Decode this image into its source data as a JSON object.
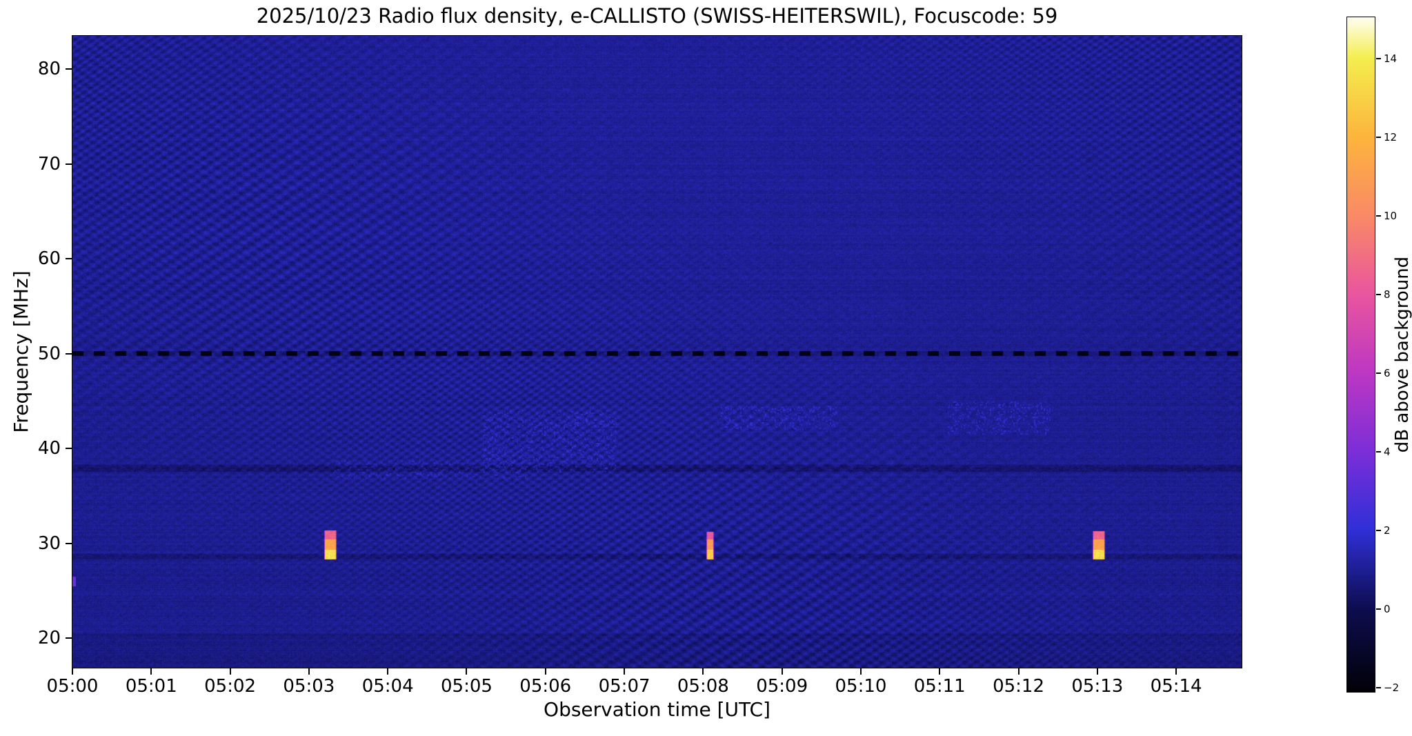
{
  "chart_data": {
    "type": "heatmap",
    "title": "2025/10/23  Radio flux density, e-CALLISTO (SWISS-HEITERSWIL), Focuscode: 59",
    "xlabel": "Observation time [UTC]",
    "ylabel": "Frequency [MHz]",
    "x_ticks": [
      "05:00",
      "05:01",
      "05:02",
      "05:03",
      "05:04",
      "05:05",
      "05:06",
      "05:07",
      "05:08",
      "05:09",
      "05:10",
      "05:11",
      "05:12",
      "05:13",
      "05:14"
    ],
    "x_range_minutes": [
      0,
      14.83
    ],
    "y_ticks": [
      20,
      30,
      40,
      50,
      60,
      70,
      80
    ],
    "freq_range_mhz": [
      16.9,
      83.5
    ],
    "background_db": 0.9,
    "grid": false,
    "colorbar": {
      "label": "dB above background",
      "vmin": -2.1,
      "vmax": 15.05,
      "tick_values": [
        -2,
        0,
        2,
        4,
        6,
        8,
        10,
        12,
        14
      ],
      "tick_labels": [
        "−2",
        "0",
        "2",
        "4",
        "6",
        "8",
        "10",
        "12",
        "14"
      ]
    },
    "colormap_stops": [
      {
        "t": 0.0,
        "color": "#020108"
      },
      {
        "t": 0.122,
        "color": "#0d0d4f"
      },
      {
        "t": 0.239,
        "color": "#2f2fd8"
      },
      {
        "t": 0.356,
        "color": "#7c2ed8"
      },
      {
        "t": 0.472,
        "color": "#bd37c3"
      },
      {
        "t": 0.589,
        "color": "#e9559e"
      },
      {
        "t": 0.706,
        "color": "#f98a66"
      },
      {
        "t": 0.822,
        "color": "#fdb43c"
      },
      {
        "t": 0.939,
        "color": "#f3ee4e"
      },
      {
        "t": 1.0,
        "color": "#fffef2"
      }
    ],
    "interference_lines": [
      {
        "freq_mhz": 50.0,
        "style": "dashed-dark",
        "db": -1.7,
        "half_width": 0.25
      },
      {
        "freq_mhz": 37.9,
        "style": "patchy-dark",
        "db_offset": -0.7,
        "half_width": 0.35
      },
      {
        "freq_mhz": 28.6,
        "style": "patchy-dark",
        "db_offset": -0.6,
        "half_width": 0.3
      }
    ],
    "bursts": [
      {
        "label": "calibration burst ~05:03:15, 28-31.5 MHz",
        "t_start_min": 3.19,
        "t_end_min": 3.34,
        "segments": [
          {
            "f_top": 31.4,
            "f_bottom": 30.45,
            "db": 8.6
          },
          {
            "f_top": 30.45,
            "f_bottom": 29.35,
            "db": 11.2
          },
          {
            "f_top": 29.35,
            "f_bottom": 28.3,
            "db": 13.6
          }
        ]
      },
      {
        "label": "calibration burst ~05:08:05, 28-31 MHz",
        "t_start_min": 8.04,
        "t_end_min": 8.13,
        "segments": [
          {
            "f_top": 31.2,
            "f_bottom": 30.4,
            "db": 8.2
          },
          {
            "f_top": 30.4,
            "f_bottom": 29.3,
            "db": 10.8
          },
          {
            "f_top": 29.3,
            "f_bottom": 28.35,
            "db": 13.0
          }
        ]
      },
      {
        "label": "calibration burst ~05:13:03, 28-31.5 MHz",
        "t_start_min": 12.94,
        "t_end_min": 13.09,
        "segments": [
          {
            "f_top": 31.3,
            "f_bottom": 30.4,
            "db": 8.6
          },
          {
            "f_top": 30.4,
            "f_bottom": 29.3,
            "db": 11.2
          },
          {
            "f_top": 29.3,
            "f_bottom": 28.3,
            "db": 13.5
          }
        ]
      }
    ],
    "enhanced_noise_regions": [
      {
        "t_start_min": 5.2,
        "t_end_min": 6.9,
        "freq_low": 37.5,
        "freq_high": 44.0,
        "amp_db": 1.0
      },
      {
        "t_start_min": 8.2,
        "t_end_min": 9.7,
        "freq_low": 42.0,
        "freq_high": 44.5,
        "amp_db": 1.0
      },
      {
        "t_start_min": 11.1,
        "t_end_min": 12.4,
        "freq_low": 41.5,
        "freq_high": 45.0,
        "amp_db": 1.1
      },
      {
        "t_start_min": 3.3,
        "t_end_min": 5.8,
        "freq_low": 36.8,
        "freq_high": 38.8,
        "amp_db": 0.8
      }
    ],
    "left_edge_mark": {
      "t_start_min": 0.0,
      "duration_min": 0.04,
      "freq_mhz": 26.0,
      "db": 3.6,
      "half_height_mhz": 0.5
    }
  }
}
